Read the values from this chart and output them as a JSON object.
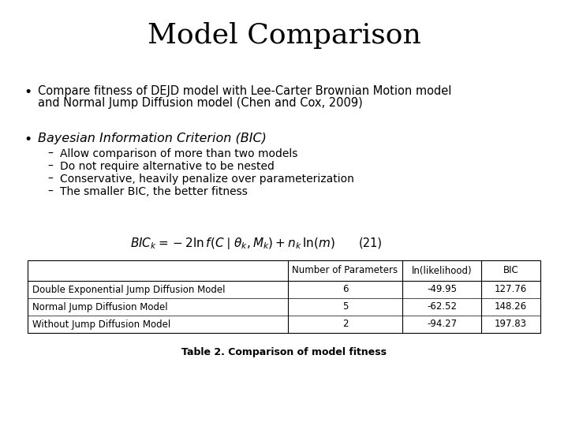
{
  "title": "Model Comparison",
  "title_fontsize": 26,
  "title_fontfamily": "serif",
  "bg_color": "#ffffff",
  "bullet1_line1": "Compare fitness of DEJD model with Lee-Carter Brownian Motion model",
  "bullet1_line2": "and Normal Jump Diffusion model (Chen and Cox, 2009)",
  "bullet2": "Bayesian Information Criterion (BIC)",
  "sub_bullets": [
    "Allow comparison of more than two models",
    "Do not require alternative to be nested",
    "Conservative, heavily penalize over parameterization",
    "The smaller BIC, the better fitness"
  ],
  "formula": "$BIC_k = -2\\ln f(C\\mid\\theta_k, M_k) + n_k\\,\\ln(m)$",
  "formula_number": "(21)",
  "table_headers": [
    "",
    "Number of Parameters",
    "ln(likelihood)",
    "BIC"
  ],
  "table_rows": [
    [
      "Double Exponential Jump Diffusion Model",
      "6",
      "-49.95",
      "127.76"
    ],
    [
      "Normal Jump Diffusion Model",
      "5",
      "-62.52",
      "148.26"
    ],
    [
      "Without Jump Diffusion Model",
      "2",
      "-94.27",
      "197.83"
    ]
  ],
  "table_caption": "Table 2. Comparison of model fitness",
  "text_fontsize": 10.5,
  "sub_fontsize": 10,
  "table_fontsize": 8.5,
  "caption_fontsize": 9
}
